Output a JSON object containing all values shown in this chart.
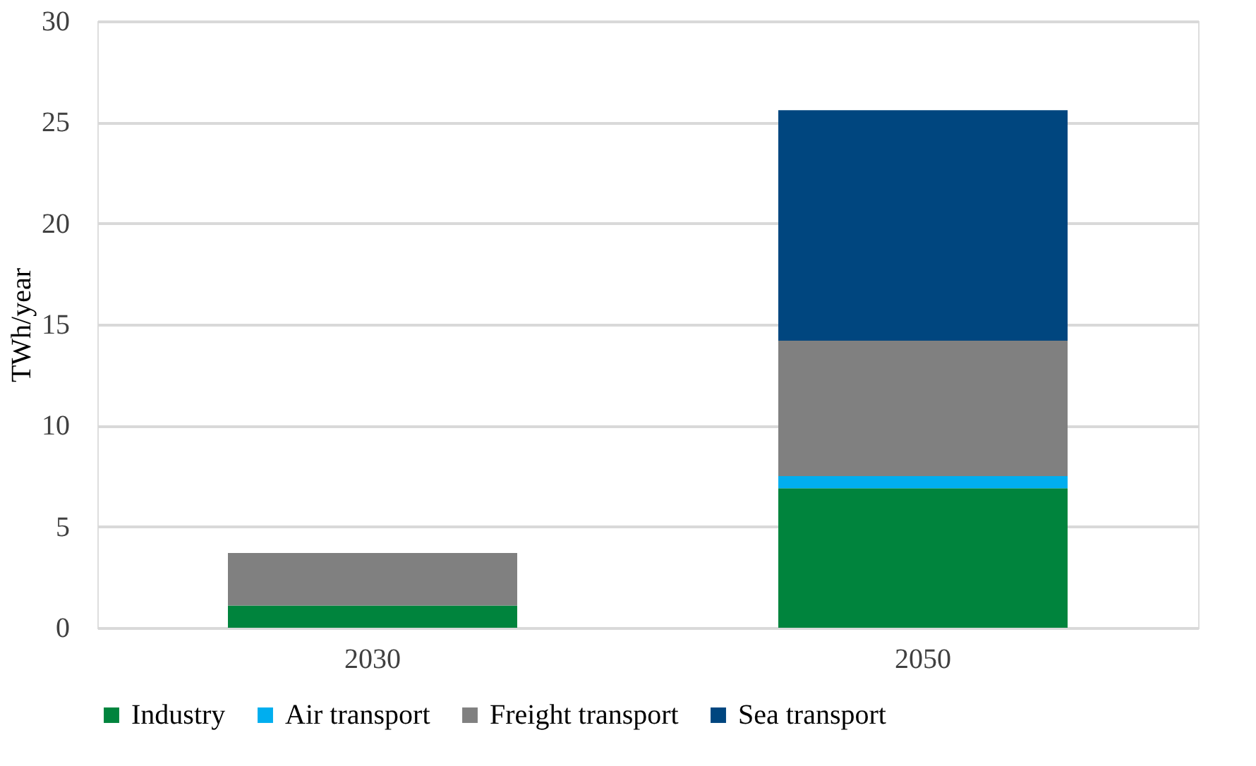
{
  "chart_data": {
    "type": "bar",
    "stacked": true,
    "ylabel": "TWh/year",
    "categories": [
      "2030",
      "2050"
    ],
    "series": [
      {
        "name": "Industry",
        "color": "#00843d",
        "values": [
          1.1,
          6.9
        ]
      },
      {
        "name": "Air transport",
        "color": "#00aeef",
        "values": [
          0,
          0.6
        ]
      },
      {
        "name": "Freight transport",
        "color": "#808080",
        "values": [
          2.6,
          6.7
        ]
      },
      {
        "name": "Sea transport",
        "color": "#00467f",
        "values": [
          0,
          11.4
        ]
      }
    ],
    "ylim": [
      0,
      30
    ],
    "yticks": [
      0,
      5,
      10,
      15,
      20,
      25,
      30
    ],
    "grid": "y",
    "legend": "bottom"
  }
}
